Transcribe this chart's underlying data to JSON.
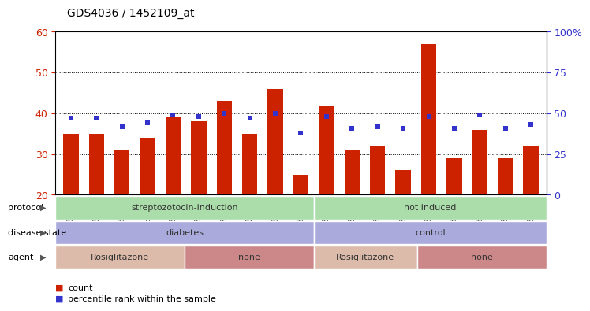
{
  "title": "GDS4036 / 1452109_at",
  "samples": [
    "GSM286437",
    "GSM286438",
    "GSM286591",
    "GSM286592",
    "GSM286593",
    "GSM286169",
    "GSM286173",
    "GSM286176",
    "GSM286178",
    "GSM286430",
    "GSM286431",
    "GSM286432",
    "GSM286433",
    "GSM286434",
    "GSM286436",
    "GSM286159",
    "GSM286160",
    "GSM286163",
    "GSM286165"
  ],
  "bar_values": [
    35,
    35,
    31,
    34,
    39,
    38,
    43,
    35,
    46,
    25,
    42,
    31,
    32,
    26,
    57,
    29,
    36,
    29,
    32
  ],
  "dot_pct": [
    47,
    47,
    42,
    44,
    49,
    48,
    50,
    47,
    50,
    38,
    48,
    41,
    42,
    41,
    48,
    41,
    49,
    41,
    43
  ],
  "bar_color": "#cc2200",
  "dot_color": "#3333cc",
  "ylim_left": [
    20,
    60
  ],
  "yticks_left": [
    20,
    30,
    40,
    50,
    60
  ],
  "ylim_right": [
    0,
    100
  ],
  "yticks_right": [
    0,
    25,
    50,
    75,
    100
  ],
  "bg_color": "#ffffff",
  "grid_color": "#000000",
  "tick_color_left": "#cc2200",
  "tick_color_right": "#3333cc",
  "row_data": [
    {
      "label": "protocol",
      "groups": [
        {
          "label": "streptozotocin-induction",
          "start": 0,
          "end": 10,
          "color": "#aaddaa"
        },
        {
          "label": "not induced",
          "start": 10,
          "end": 19,
          "color": "#aaddaa"
        }
      ]
    },
    {
      "label": "disease state",
      "groups": [
        {
          "label": "diabetes",
          "start": 0,
          "end": 10,
          "color": "#aaaadd"
        },
        {
          "label": "control",
          "start": 10,
          "end": 19,
          "color": "#aaaadd"
        }
      ]
    },
    {
      "label": "agent",
      "groups": [
        {
          "label": "Rosiglitazone",
          "start": 0,
          "end": 5,
          "color": "#ddbbaa"
        },
        {
          "label": "none",
          "start": 5,
          "end": 10,
          "color": "#cc8888"
        },
        {
          "label": "Rosiglitazone",
          "start": 10,
          "end": 14,
          "color": "#ddbbaa"
        },
        {
          "label": "none",
          "start": 14,
          "end": 19,
          "color": "#cc8888"
        }
      ]
    }
  ]
}
